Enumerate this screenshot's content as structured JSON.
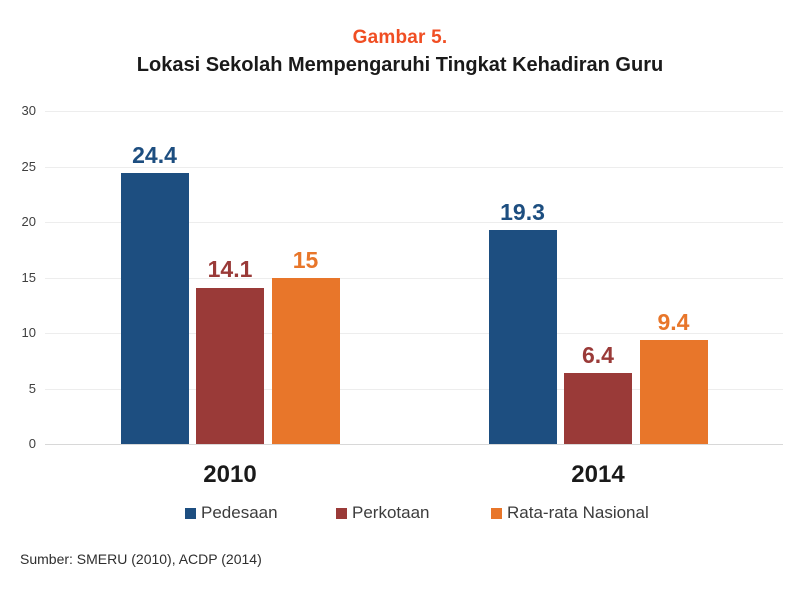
{
  "figure": {
    "label": "Gambar 5.",
    "title": "Lokasi Sekolah Mempengaruhi Tingkat Kehadiran Guru",
    "source": "Sumber: SMERU (2010), ACDP (2014)"
  },
  "colors": {
    "figure_label": "#f04e23",
    "pedesaan": "#1d4e80",
    "perkotaan": "#9a3a38",
    "rata_rata_nasional": "#e8762a",
    "gridline": "#ededed",
    "axis_line": "#d8d8d8"
  },
  "chart_data": {
    "type": "bar",
    "title": "Gambar 5.",
    "subtitle": "Lokasi Sekolah Mempengaruhi Tingkat Kehadiran Guru",
    "categories": [
      "2010",
      "2014"
    ],
    "series": [
      {
        "name": "Pedesaan",
        "color": "#1d4e80",
        "values": [
          24.4,
          19.3
        ]
      },
      {
        "name": "Perkotaan",
        "color": "#9a3a38",
        "values": [
          14.1,
          6.4
        ]
      },
      {
        "name": "Rata-rata Nasional",
        "color": "#e8762a",
        "values": [
          15,
          9.4
        ]
      }
    ],
    "value_labels": [
      "24.4",
      "14.1",
      "15",
      "19.3",
      "6.4",
      "9.4"
    ],
    "xlabel": "",
    "ylabel": "",
    "ylim": [
      0,
      30
    ],
    "yticks": [
      0,
      5,
      10,
      15,
      20,
      25,
      30
    ],
    "grid": true,
    "legend_position": "bottom",
    "source": "Sumber: SMERU (2010), ACDP (2014)"
  }
}
